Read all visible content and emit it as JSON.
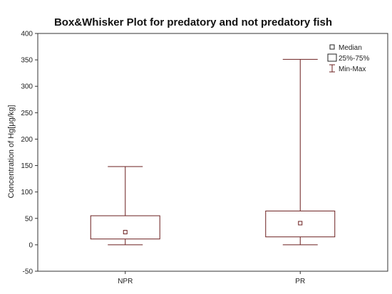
{
  "chart_data": {
    "type": "boxplot",
    "title": "Box&Whisker Plot for predatory and not predatory fish",
    "ylabel": "Concentration of Hg[μg/kg]",
    "xlabel": "",
    "ylim": [
      -50,
      400
    ],
    "yticks": [
      -50,
      0,
      50,
      100,
      150,
      200,
      250,
      300,
      350,
      400
    ],
    "categories": [
      "NPR",
      "PR"
    ],
    "boxes": [
      {
        "category": "NPR",
        "min": 0,
        "q1": 11,
        "median": 24,
        "q3": 55,
        "max": 148
      },
      {
        "category": "PR",
        "min": 0,
        "q1": 15,
        "median": 41,
        "q3": 64,
        "max": 351
      }
    ],
    "legend": {
      "position": "top-right",
      "items": [
        {
          "symbol": "small-square",
          "label": "Median"
        },
        {
          "symbol": "box",
          "label": "25%-75%"
        },
        {
          "symbol": "whisker",
          "label": "Min-Max"
        }
      ]
    },
    "grid": false,
    "colors": {
      "box": "#6b1f1f",
      "axis": "#333333"
    }
  }
}
